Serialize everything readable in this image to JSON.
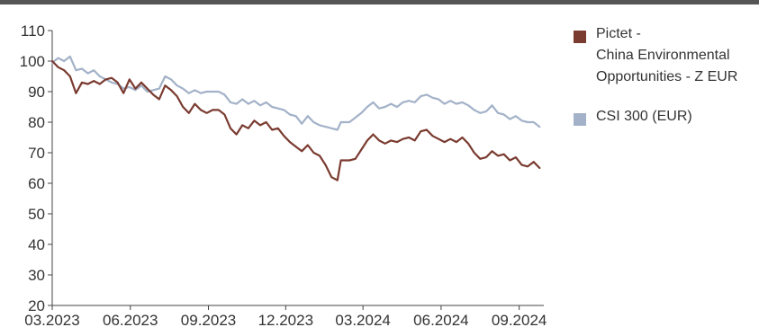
{
  "chart_data": {
    "type": "line",
    "title": "",
    "xlabel": "",
    "ylabel": "",
    "ylim": [
      20,
      110
    ],
    "yticks": [
      20,
      30,
      40,
      50,
      60,
      70,
      80,
      90,
      100,
      110
    ],
    "xlim": [
      "2023-03-01",
      "2024-09-30"
    ],
    "xticks": [
      {
        "date": "2023-03-01",
        "label": "03.2023"
      },
      {
        "date": "2023-06-01",
        "label": "06.2023"
      },
      {
        "date": "2023-09-01",
        "label": "09.2023"
      },
      {
        "date": "2023-12-01",
        "label": "12.2023"
      },
      {
        "date": "2024-03-01",
        "label": "03.2024"
      },
      {
        "date": "2024-06-01",
        "label": "06.2024"
      },
      {
        "date": "2024-09-01",
        "label": "09.2024"
      }
    ],
    "grid": false,
    "legend_position": "right",
    "series": [
      {
        "name": "Pictet - China Environmental Opportunities - Z EUR",
        "legend_lines": [
          "Pictet -",
          "China Environmental",
          "Opportunities - Z EUR"
        ],
        "color": "#7a3b30",
        "points": [
          [
            "2023-03-01",
            100
          ],
          [
            "2023-03-08",
            98
          ],
          [
            "2023-03-15",
            97
          ],
          [
            "2023-03-22",
            95
          ],
          [
            "2023-03-29",
            89.5
          ],
          [
            "2023-04-05",
            93
          ],
          [
            "2023-04-12",
            92.5
          ],
          [
            "2023-04-19",
            93.5
          ],
          [
            "2023-04-26",
            92.5
          ],
          [
            "2023-05-03",
            94
          ],
          [
            "2023-05-10",
            94.5
          ],
          [
            "2023-05-17",
            93
          ],
          [
            "2023-05-24",
            89.5
          ],
          [
            "2023-05-31",
            94
          ],
          [
            "2023-06-07",
            91
          ],
          [
            "2023-06-14",
            93
          ],
          [
            "2023-06-21",
            91
          ],
          [
            "2023-06-28",
            89
          ],
          [
            "2023-07-05",
            87.5
          ],
          [
            "2023-07-12",
            92
          ],
          [
            "2023-07-19",
            90.5
          ],
          [
            "2023-07-26",
            88.5
          ],
          [
            "2023-08-02",
            85
          ],
          [
            "2023-08-09",
            83
          ],
          [
            "2023-08-16",
            86
          ],
          [
            "2023-08-23",
            84
          ],
          [
            "2023-08-30",
            83
          ],
          [
            "2023-09-06",
            84
          ],
          [
            "2023-09-13",
            84
          ],
          [
            "2023-09-20",
            82.5
          ],
          [
            "2023-09-27",
            78
          ],
          [
            "2023-10-04",
            76
          ],
          [
            "2023-10-11",
            79
          ],
          [
            "2023-10-18",
            78
          ],
          [
            "2023-10-25",
            80.5
          ],
          [
            "2023-11-01",
            79
          ],
          [
            "2023-11-08",
            80
          ],
          [
            "2023-11-15",
            77.5
          ],
          [
            "2023-11-22",
            78
          ],
          [
            "2023-11-29",
            75.5
          ],
          [
            "2023-12-06",
            73.5
          ],
          [
            "2023-12-13",
            72
          ],
          [
            "2023-12-20",
            70.5
          ],
          [
            "2023-12-27",
            72.5
          ],
          [
            "2024-01-03",
            70
          ],
          [
            "2024-01-10",
            69
          ],
          [
            "2024-01-17",
            66
          ],
          [
            "2024-01-24",
            62
          ],
          [
            "2024-01-31",
            61
          ],
          [
            "2024-02-04",
            67.5
          ],
          [
            "2024-02-14",
            67.5
          ],
          [
            "2024-02-21",
            68
          ],
          [
            "2024-02-28",
            71
          ],
          [
            "2024-03-06",
            74
          ],
          [
            "2024-03-13",
            76
          ],
          [
            "2024-03-20",
            74
          ],
          [
            "2024-03-27",
            73
          ],
          [
            "2024-04-03",
            74
          ],
          [
            "2024-04-10",
            73.5
          ],
          [
            "2024-04-17",
            74.5
          ],
          [
            "2024-04-24",
            75
          ],
          [
            "2024-05-01",
            74
          ],
          [
            "2024-05-08",
            77
          ],
          [
            "2024-05-15",
            77.5
          ],
          [
            "2024-05-22",
            75.5
          ],
          [
            "2024-05-29",
            74.5
          ],
          [
            "2024-06-05",
            73.5
          ],
          [
            "2024-06-12",
            74.5
          ],
          [
            "2024-06-19",
            73.5
          ],
          [
            "2024-06-26",
            75
          ],
          [
            "2024-07-03",
            73
          ],
          [
            "2024-07-10",
            70
          ],
          [
            "2024-07-17",
            68
          ],
          [
            "2024-07-24",
            68.5
          ],
          [
            "2024-07-31",
            70.5
          ],
          [
            "2024-08-07",
            69
          ],
          [
            "2024-08-14",
            69.5
          ],
          [
            "2024-08-21",
            67.5
          ],
          [
            "2024-08-28",
            68.5
          ],
          [
            "2024-09-04",
            66
          ],
          [
            "2024-09-11",
            65.5
          ],
          [
            "2024-09-18",
            67
          ],
          [
            "2024-09-25",
            65
          ]
        ]
      },
      {
        "name": "CSI 300 (EUR)",
        "legend_lines": [
          "CSI 300 (EUR)"
        ],
        "color": "#a3b2c8",
        "points": [
          [
            "2023-03-01",
            99.5
          ],
          [
            "2023-03-08",
            101
          ],
          [
            "2023-03-15",
            100
          ],
          [
            "2023-03-22",
            101.5
          ],
          [
            "2023-03-29",
            97
          ],
          [
            "2023-04-05",
            97.5
          ],
          [
            "2023-04-12",
            96
          ],
          [
            "2023-04-19",
            97
          ],
          [
            "2023-04-26",
            95
          ],
          [
            "2023-05-03",
            94
          ],
          [
            "2023-05-10",
            93
          ],
          [
            "2023-05-17",
            92.5
          ],
          [
            "2023-05-24",
            91
          ],
          [
            "2023-05-31",
            91.5
          ],
          [
            "2023-06-07",
            90.5
          ],
          [
            "2023-06-14",
            92
          ],
          [
            "2023-06-21",
            90
          ],
          [
            "2023-06-28",
            90.5
          ],
          [
            "2023-07-05",
            91
          ],
          [
            "2023-07-12",
            95
          ],
          [
            "2023-07-19",
            94
          ],
          [
            "2023-07-26",
            92
          ],
          [
            "2023-08-02",
            91
          ],
          [
            "2023-08-09",
            89.5
          ],
          [
            "2023-08-16",
            90.5
          ],
          [
            "2023-08-23",
            89.5
          ],
          [
            "2023-08-30",
            90
          ],
          [
            "2023-09-06",
            90
          ],
          [
            "2023-09-13",
            90
          ],
          [
            "2023-09-20",
            89
          ],
          [
            "2023-09-27",
            86.5
          ],
          [
            "2023-10-04",
            86
          ],
          [
            "2023-10-11",
            87.5
          ],
          [
            "2023-10-18",
            86
          ],
          [
            "2023-10-25",
            87
          ],
          [
            "2023-11-01",
            85.5
          ],
          [
            "2023-11-08",
            86.5
          ],
          [
            "2023-11-15",
            85
          ],
          [
            "2023-11-22",
            84.5
          ],
          [
            "2023-11-29",
            84
          ],
          [
            "2023-12-06",
            82.5
          ],
          [
            "2023-12-13",
            82
          ],
          [
            "2023-12-20",
            79.5
          ],
          [
            "2023-12-27",
            82
          ],
          [
            "2024-01-03",
            80
          ],
          [
            "2024-01-10",
            79
          ],
          [
            "2024-01-17",
            78.5
          ],
          [
            "2024-01-24",
            78
          ],
          [
            "2024-01-31",
            77.5
          ],
          [
            "2024-02-04",
            80
          ],
          [
            "2024-02-14",
            80
          ],
          [
            "2024-02-21",
            81.5
          ],
          [
            "2024-02-28",
            83
          ],
          [
            "2024-03-06",
            85
          ],
          [
            "2024-03-13",
            86.5
          ],
          [
            "2024-03-20",
            84.5
          ],
          [
            "2024-03-27",
            85
          ],
          [
            "2024-04-03",
            86
          ],
          [
            "2024-04-10",
            85
          ],
          [
            "2024-04-17",
            86.5
          ],
          [
            "2024-04-24",
            87
          ],
          [
            "2024-05-01",
            86.5
          ],
          [
            "2024-05-08",
            88.5
          ],
          [
            "2024-05-15",
            89
          ],
          [
            "2024-05-22",
            88
          ],
          [
            "2024-05-29",
            87.5
          ],
          [
            "2024-06-05",
            86
          ],
          [
            "2024-06-12",
            87
          ],
          [
            "2024-06-19",
            86
          ],
          [
            "2024-06-26",
            86.5
          ],
          [
            "2024-07-03",
            85.5
          ],
          [
            "2024-07-10",
            84
          ],
          [
            "2024-07-17",
            83
          ],
          [
            "2024-07-24",
            83.5
          ],
          [
            "2024-07-31",
            85.5
          ],
          [
            "2024-08-07",
            83
          ],
          [
            "2024-08-14",
            82.5
          ],
          [
            "2024-08-21",
            81
          ],
          [
            "2024-08-28",
            82
          ],
          [
            "2024-09-04",
            80.5
          ],
          [
            "2024-09-11",
            80
          ],
          [
            "2024-09-18",
            80
          ],
          [
            "2024-09-25",
            78.5
          ]
        ]
      }
    ]
  }
}
